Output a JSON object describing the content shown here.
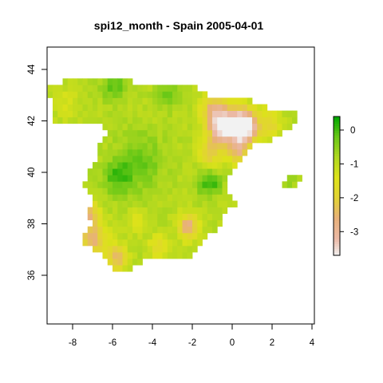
{
  "title": "spi12_month - Spain 2005-04-01",
  "chart_data": {
    "type": "heatmap",
    "title": "spi12_month - Spain 2005-04-01",
    "xlabel": "",
    "ylabel": "",
    "xlim": [
      -9.2,
      4.2
    ],
    "ylim": [
      34.1,
      44.8
    ],
    "x_ticks": [
      -8,
      -6,
      -4,
      -2,
      0,
      2,
      4
    ],
    "y_ticks": [
      36,
      38,
      40,
      42,
      44
    ],
    "x_tick_labels": [
      "-8",
      "-6",
      "-4",
      "-2",
      "0",
      "2",
      "4"
    ],
    "y_tick_labels": [
      "36",
      "38",
      "40",
      "42",
      "44"
    ],
    "grid": false,
    "legend": {
      "position": "right",
      "range": [
        -3.7,
        0.4
      ],
      "ticks": [
        0,
        -1,
        -2,
        -3
      ],
      "tick_labels": [
        "0",
        "-1",
        "-2",
        "-3"
      ]
    },
    "color_scale": [
      {
        "value": -3.7,
        "color": "#f2f2f2"
      },
      {
        "value": -3.2,
        "color": "#ebb9a6"
      },
      {
        "value": -2.6,
        "color": "#e8b07a"
      },
      {
        "value": -2.0,
        "color": "#e2d334"
      },
      {
        "value": -1.4,
        "color": "#dde21a"
      },
      {
        "value": -0.8,
        "color": "#b0d81f"
      },
      {
        "value": -0.2,
        "color": "#6ac817"
      },
      {
        "value": 0.4,
        "color": "#00a600"
      }
    ],
    "regions": [
      {
        "type": "base",
        "value": -0.9
      },
      {
        "type": "spot",
        "lon": -4.6,
        "lat": 40.4,
        "value": -0.2,
        "r": 1.4
      },
      {
        "type": "spot",
        "lon": -5.8,
        "lat": 39.8,
        "value": -0.1,
        "r": 0.9
      },
      {
        "type": "spot",
        "lon": -5.9,
        "lat": 43.4,
        "value": -0.1,
        "r": 0.8
      },
      {
        "type": "spot",
        "lon": -3.2,
        "lat": 43.1,
        "value": -0.3,
        "r": 0.7
      },
      {
        "type": "spot",
        "lon": -8.3,
        "lat": 42.7,
        "value": -1.3,
        "r": 0.8
      },
      {
        "type": "spot",
        "lon": -1.4,
        "lat": 39.5,
        "value": -0.5,
        "r": 0.7
      },
      {
        "type": "spot",
        "lon": 0.2,
        "lat": 41.9,
        "value": -3.4,
        "r": 0.9
      },
      {
        "type": "spot",
        "lon": -0.6,
        "lat": 41.7,
        "value": -3.0,
        "r": 0.7
      },
      {
        "type": "spot",
        "lon": 0.8,
        "lat": 41.8,
        "value": -3.1,
        "r": 0.7
      },
      {
        "type": "spot",
        "lon": -0.9,
        "lat": 42.4,
        "value": -2.6,
        "r": 0.8
      },
      {
        "type": "spot",
        "lon": 0.3,
        "lat": 40.9,
        "value": -2.5,
        "r": 0.7
      },
      {
        "type": "spot",
        "lon": -1.1,
        "lat": 40.8,
        "value": -2.2,
        "r": 0.7
      },
      {
        "type": "spot",
        "lon": 1.9,
        "lat": 41.9,
        "value": -1.9,
        "r": 0.7
      },
      {
        "type": "spot",
        "lon": -7.0,
        "lat": 37.4,
        "value": -2.5,
        "r": 0.9
      },
      {
        "type": "spot",
        "lon": -7.1,
        "lat": 38.4,
        "value": -2.2,
        "r": 0.6
      },
      {
        "type": "spot",
        "lon": -5.8,
        "lat": 36.7,
        "value": -2.5,
        "r": 0.6
      },
      {
        "type": "spot",
        "lon": -2.2,
        "lat": 37.9,
        "value": -2.8,
        "r": 0.6
      },
      {
        "type": "spot",
        "lon": -3.7,
        "lat": 37.1,
        "value": -1.8,
        "r": 0.6
      },
      {
        "type": "spot",
        "lon": -4.8,
        "lat": 38.1,
        "value": -1.5,
        "r": 0.6
      },
      {
        "type": "spot",
        "lon": -1.0,
        "lat": 39.6,
        "value": -0.1,
        "r": 0.6
      },
      {
        "type": "spot",
        "lon": 3.0,
        "lat": 39.6,
        "value": -0.7,
        "r": 0.6
      }
    ],
    "grid_resolution_deg": 0.25
  }
}
